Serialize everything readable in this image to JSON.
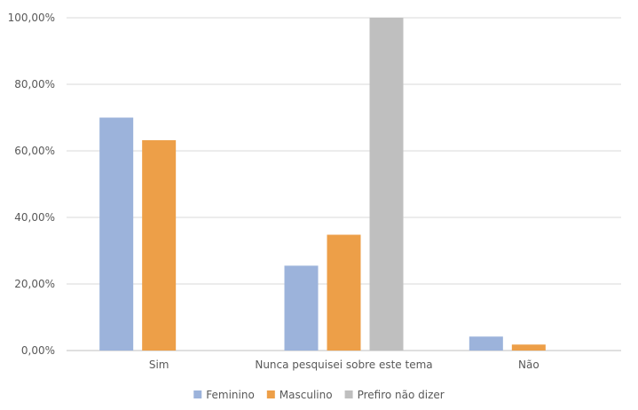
{
  "chart_data": {
    "type": "bar",
    "categories": [
      "Sim",
      "Nunca pesquisei sobre este tema",
      "Não"
    ],
    "series": [
      {
        "name": "Feminino",
        "values": [
          70.0,
          25.5,
          4.2
        ],
        "color": "#9cb3db"
      },
      {
        "name": "Masculino",
        "values": [
          63.2,
          34.8,
          1.8
        ],
        "color": "#ed9f48"
      },
      {
        "name": "Prefiro não dizer",
        "values": [
          0,
          100.0,
          0
        ],
        "color": "#bfbfbf"
      }
    ],
    "ylim": [
      0,
      100
    ],
    "yticks": [
      "0,00%",
      "20,00%",
      "40,00%",
      "60,00%",
      "80,00%",
      "100,00%"
    ],
    "ytick_values": [
      0,
      20,
      40,
      60,
      80,
      100
    ],
    "grid": true,
    "legend_position": "bottom",
    "title": "",
    "xlabel": "",
    "ylabel": ""
  }
}
